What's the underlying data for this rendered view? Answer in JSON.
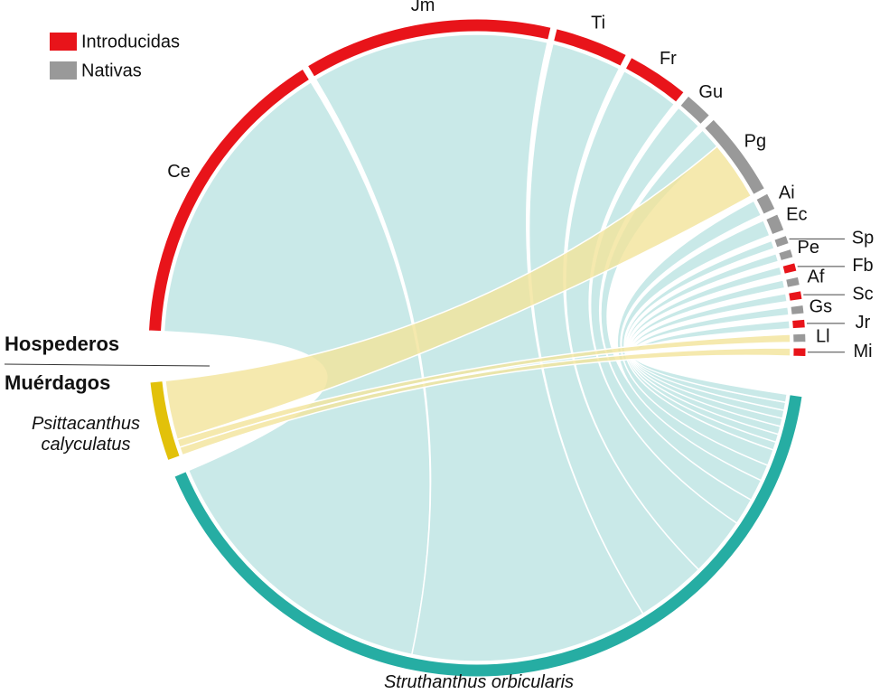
{
  "chart_data": {
    "type": "chord",
    "legend": [
      {
        "label": "Introducidas",
        "color": "#e8141a"
      },
      {
        "label": "Nativas",
        "color": "#999999"
      }
    ],
    "side_labels": {
      "top": "Hospederos",
      "bottom": "Muérdagos"
    },
    "hosts": [
      {
        "label": "Ce",
        "origin": "Introducidas"
      },
      {
        "label": "Jm",
        "origin": "Introducidas"
      },
      {
        "label": "Ti",
        "origin": "Introducidas"
      },
      {
        "label": "Fr",
        "origin": "Introducidas"
      },
      {
        "label": "Gu",
        "origin": "Nativas"
      },
      {
        "label": "Pg",
        "origin": "Nativas"
      },
      {
        "label": "Ai",
        "origin": "Nativas"
      },
      {
        "label": "Ec",
        "origin": "Nativas"
      },
      {
        "label": "Sp",
        "origin": "Nativas"
      },
      {
        "label": "Pe",
        "origin": "Nativas"
      },
      {
        "label": "Fb",
        "origin": "Introducidas"
      },
      {
        "label": "Af",
        "origin": "Nativas"
      },
      {
        "label": "Sc",
        "origin": "Introducidas"
      },
      {
        "label": "Gs",
        "origin": "Nativas"
      },
      {
        "label": "Jr",
        "origin": "Introducidas"
      },
      {
        "label": "Ll",
        "origin": "Nativas"
      },
      {
        "label": "Mi",
        "origin": "Introducidas"
      }
    ],
    "mistletoes": [
      {
        "label": "Psittacanthus calyculatus",
        "color": "#e2c10a",
        "ribbon_color": "#f2e39a"
      },
      {
        "label": "Struthanthus orbicularis",
        "color": "#26ada3",
        "ribbon_color": "#bbe4e2"
      }
    ],
    "links": [
      {
        "source": "Ce",
        "target": "Struthanthus orbicularis",
        "value": 55
      },
      {
        "source": "Jm",
        "target": "Struthanthus orbicularis",
        "value": 44
      },
      {
        "source": "Ti",
        "target": "Struthanthus orbicularis",
        "value": 13
      },
      {
        "source": "Fr",
        "target": "Struthanthus orbicularis",
        "value": 11
      },
      {
        "source": "Gu",
        "target": "Struthanthus orbicularis",
        "value": 5
      },
      {
        "source": "Pg",
        "target": "Struthanthus orbicularis",
        "value": 4
      },
      {
        "source": "Pg",
        "target": "Psittacanthus calyculatus",
        "value": 11
      },
      {
        "source": "Ai",
        "target": "Struthanthus orbicularis",
        "value": 3
      },
      {
        "source": "Ec",
        "target": "Struthanthus orbicularis",
        "value": 3
      },
      {
        "source": "Sp",
        "target": "Struthanthus orbicularis",
        "value": 1.5
      },
      {
        "source": "Pe",
        "target": "Struthanthus orbicularis",
        "value": 1.5
      },
      {
        "source": "Fb",
        "target": "Struthanthus orbicularis",
        "value": 1.5
      },
      {
        "source": "Af",
        "target": "Struthanthus orbicularis",
        "value": 1.5
      },
      {
        "source": "Sc",
        "target": "Struthanthus orbicularis",
        "value": 1.5
      },
      {
        "source": "Gs",
        "target": "Struthanthus orbicularis",
        "value": 1.5
      },
      {
        "source": "Jr",
        "target": "Struthanthus orbicularis",
        "value": 1.5
      },
      {
        "source": "Ll",
        "target": "Psittacanthus calyculatus",
        "value": 1.5
      },
      {
        "source": "Mi",
        "target": "Psittacanthus calyculatus",
        "value": 1.5
      }
    ]
  }
}
